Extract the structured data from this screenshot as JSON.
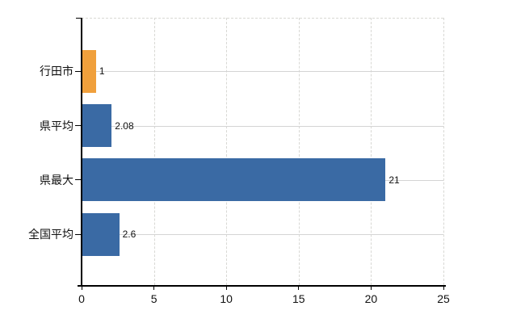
{
  "chart_data": {
    "type": "bar",
    "orientation": "horizontal",
    "title": "",
    "xlabel": "",
    "ylabel": "",
    "categories": [
      "行田市",
      "県平均",
      "県最大",
      "全国平均"
    ],
    "values": [
      1,
      2.08,
      21,
      2.6
    ],
    "value_labels": [
      "1",
      "2.08",
      "21",
      "2.6"
    ],
    "bar_colors": [
      "#f0a03c",
      "#3a6aa4",
      "#3a6aa4",
      "#3a6aa4"
    ],
    "highlight_color": "#f0a03c",
    "series_color": "#3a6aa4",
    "xlim": [
      0,
      25
    ],
    "x_ticks": [
      0,
      5,
      10,
      15,
      20,
      25
    ],
    "x_tick_labels": [
      "0",
      "5",
      "10",
      "15",
      "20",
      "25"
    ],
    "grid": true,
    "gridline_solid_color": "#d4d4d4",
    "gridline_dashed_color": "#d8d8d4",
    "axis_color": "#000000",
    "text_color": "#111111",
    "background": "#ffffff",
    "legend": "none"
  }
}
